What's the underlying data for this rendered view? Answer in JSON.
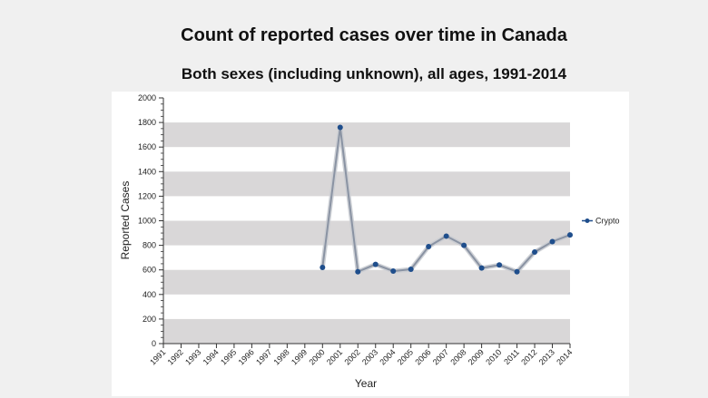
{
  "chart_data": {
    "type": "line",
    "title": "Count of reported cases over time in Canada",
    "subtitle": "Both sexes (including unknown), all ages, 1991-2014",
    "xlabel": "Year",
    "ylabel": "Reported Cases",
    "ylim": [
      0,
      2000
    ],
    "yticks": [
      0,
      200,
      400,
      600,
      800,
      1000,
      1200,
      1400,
      1600,
      1800,
      2000
    ],
    "categories": [
      "1991",
      "1992",
      "1993",
      "1994",
      "1995",
      "1996",
      "1997",
      "1998",
      "1999",
      "2000",
      "2001",
      "2002",
      "2003",
      "2004",
      "2005",
      "2006",
      "2007",
      "2008",
      "2009",
      "2010",
      "2011",
      "2012",
      "2013",
      "2014"
    ],
    "series": [
      {
        "name": "Crypto",
        "values": [
          null,
          null,
          null,
          null,
          null,
          null,
          null,
          null,
          null,
          620,
          1760,
          585,
          645,
          590,
          605,
          790,
          875,
          800,
          615,
          640,
          585,
          745,
          830,
          885
        ]
      }
    ],
    "legend_position": "right",
    "grid": "alternating horizontal bands",
    "colors": {
      "band": "#d9d7d8",
      "line": "#8a93a3",
      "marker": "#1f4e8c"
    }
  }
}
